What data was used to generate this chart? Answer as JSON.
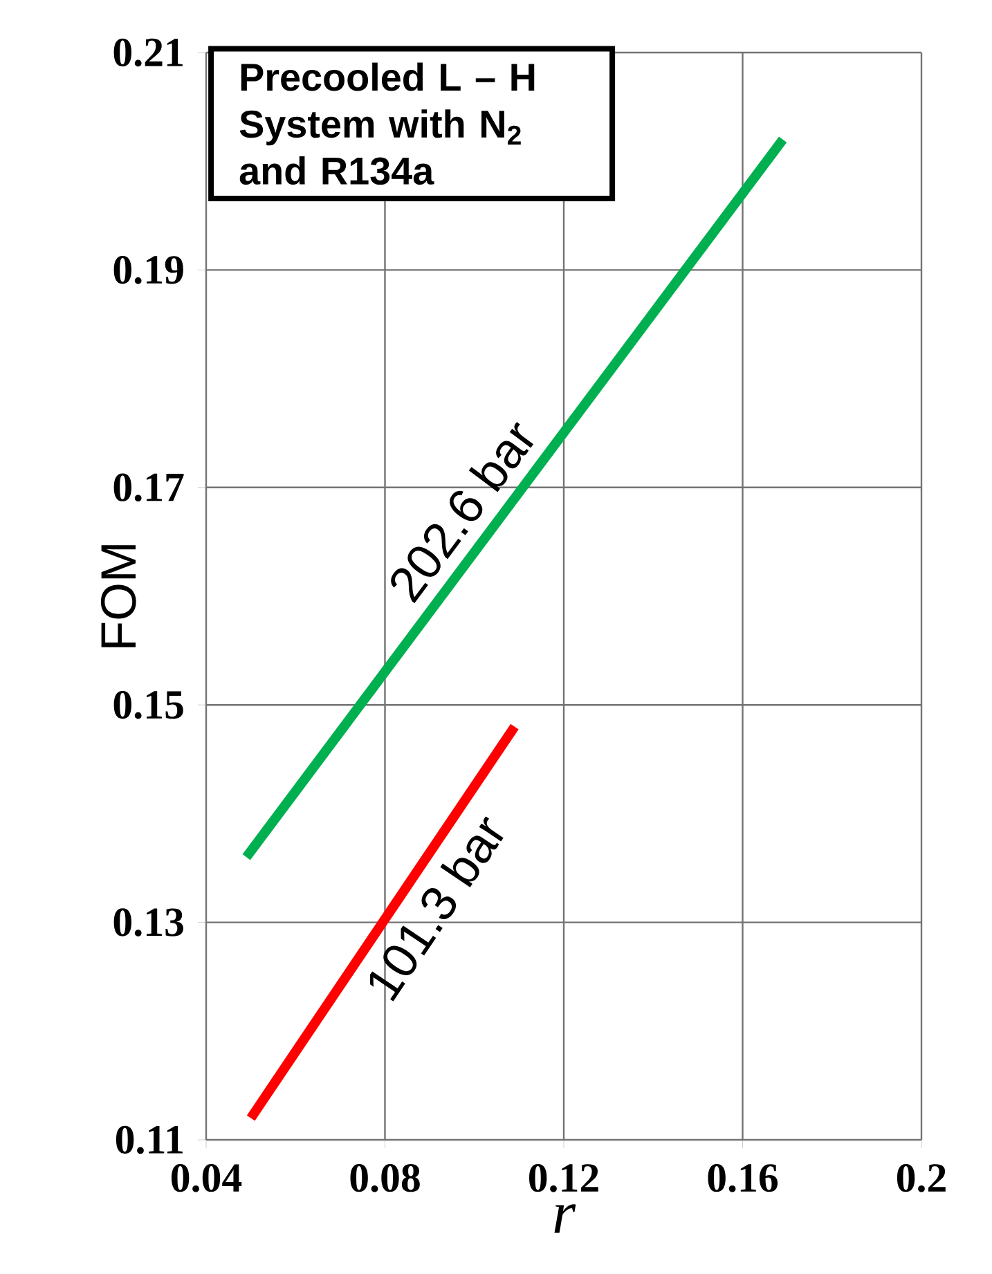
{
  "chart_data": {
    "type": "line",
    "title": "Precooled L – H System with N$_{2}$ and R134a",
    "xlabel": "r",
    "ylabel": "FOM",
    "xlim": [
      0.04,
      0.2
    ],
    "ylim": [
      0.11,
      0.21
    ],
    "xticks": [
      0.04,
      0.08,
      0.12,
      0.16,
      0.2
    ],
    "yticks": [
      0.11,
      0.13,
      0.15,
      0.17,
      0.19,
      0.21
    ],
    "grid": true,
    "line_style": "solid",
    "series": [
      {
        "name": "202.6 bar",
        "color": "#00b050",
        "x": [
          0.049,
          0.169
        ],
        "values": [
          0.136,
          0.202
        ]
      },
      {
        "name": "101.3 bar",
        "color": "#ff0000",
        "x": [
          0.05,
          0.109
        ],
        "values": [
          0.112,
          0.148
        ]
      }
    ]
  }
}
